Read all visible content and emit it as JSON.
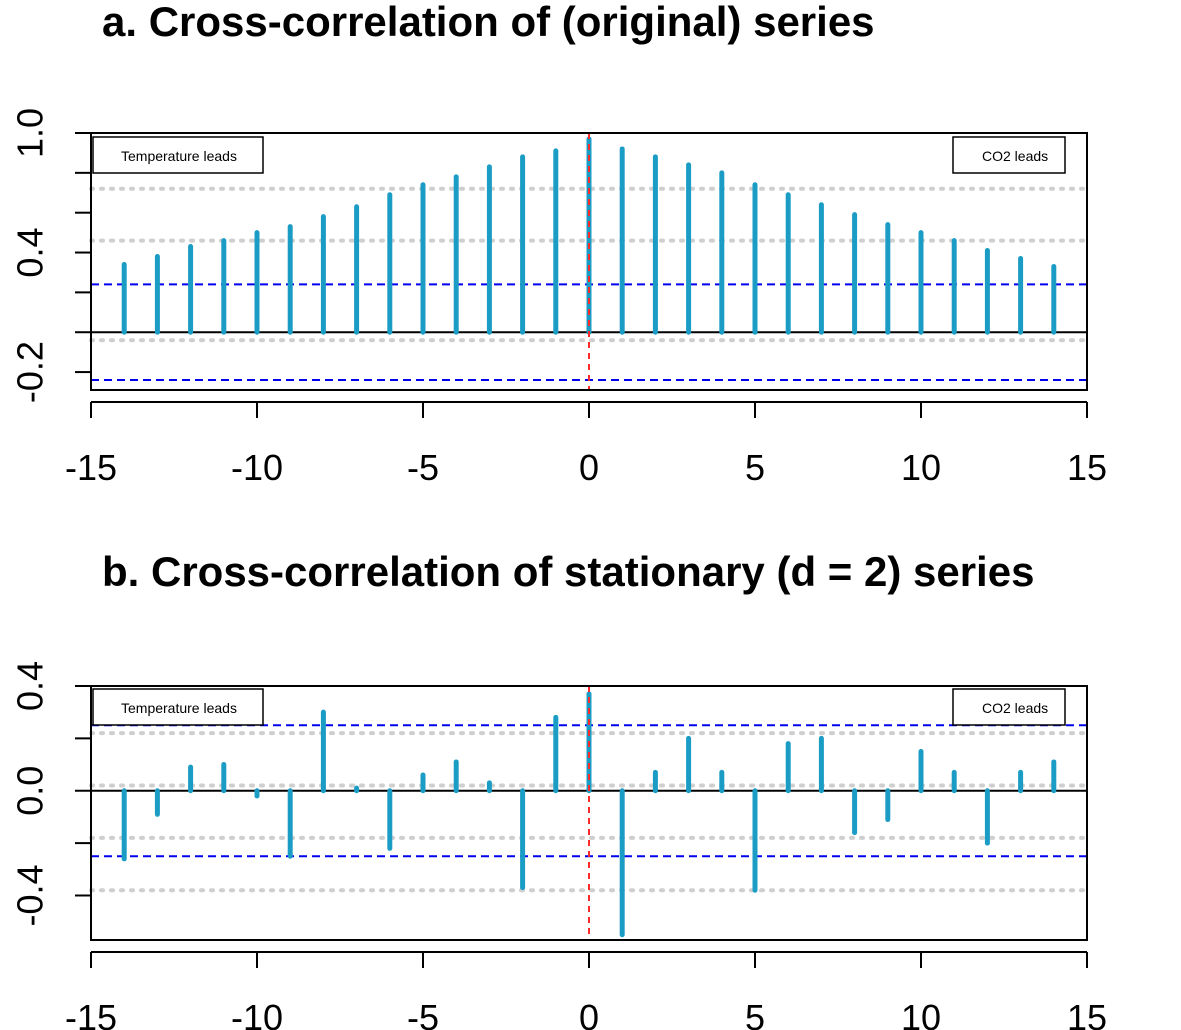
{
  "chart_data": [
    {
      "type": "bar",
      "title": "a. Cross-correlation of (original) series",
      "xlabel": "",
      "ylabel": "",
      "xlim": [
        -15,
        15
      ],
      "ylim": [
        -0.29,
        1.0
      ],
      "x_ticks": [
        "-15",
        "-10",
        "-5",
        "0",
        "5",
        "10",
        "15"
      ],
      "y_ticks": [
        "-0.2",
        "0.4",
        "1.0"
      ],
      "confidence_band": 0.24,
      "dotted_gridlines": [
        0.72,
        0.46,
        -0.04
      ],
      "legend": {
        "left": "Temperature leads",
        "right": "CO2 leads"
      },
      "lags": [
        -14,
        -13,
        -12,
        -11,
        -10,
        -9,
        -8,
        -7,
        -6,
        -5,
        -4,
        -3,
        -2,
        -1,
        0,
        1,
        2,
        3,
        4,
        5,
        6,
        7,
        8,
        9,
        10,
        11,
        12,
        13,
        14
      ],
      "values": [
        0.34,
        0.38,
        0.43,
        0.46,
        0.5,
        0.53,
        0.58,
        0.63,
        0.69,
        0.74,
        0.78,
        0.83,
        0.88,
        0.91,
        0.97,
        0.92,
        0.88,
        0.84,
        0.8,
        0.74,
        0.69,
        0.64,
        0.59,
        0.54,
        0.5,
        0.46,
        0.41,
        0.37,
        0.33
      ]
    },
    {
      "type": "bar",
      "title": "b. Cross-correlation of stationary (d = 2) series",
      "xlabel": "",
      "ylabel": "",
      "xlim": [
        -15,
        15
      ],
      "ylim": [
        -0.57,
        0.4
      ],
      "x_ticks": [
        "-15",
        "-10",
        "-5",
        "0",
        "5",
        "10",
        "15"
      ],
      "y_ticks": [
        "-0.4",
        "0.0",
        "0.4"
      ],
      "confidence_band": 0.25,
      "dotted_gridlines": [
        0.22,
        0.02,
        -0.18,
        -0.38
      ],
      "legend": {
        "left": "Temperature leads",
        "right": "CO2 leads"
      },
      "lags": [
        -14,
        -13,
        -12,
        -11,
        -10,
        -9,
        -8,
        -7,
        -6,
        -5,
        -4,
        -3,
        -2,
        -1,
        0,
        1,
        2,
        3,
        4,
        5,
        6,
        7,
        8,
        9,
        10,
        11,
        12,
        13,
        14
      ],
      "values": [
        -0.26,
        -0.09,
        0.09,
        0.1,
        -0.02,
        -0.25,
        0.3,
        0.01,
        -0.22,
        0.06,
        0.11,
        0.03,
        -0.37,
        0.28,
        0.37,
        -0.55,
        0.07,
        0.2,
        0.07,
        -0.38,
        0.18,
        0.2,
        -0.16,
        -0.11,
        0.15,
        0.07,
        -0.2,
        0.07,
        0.11
      ]
    }
  ]
}
